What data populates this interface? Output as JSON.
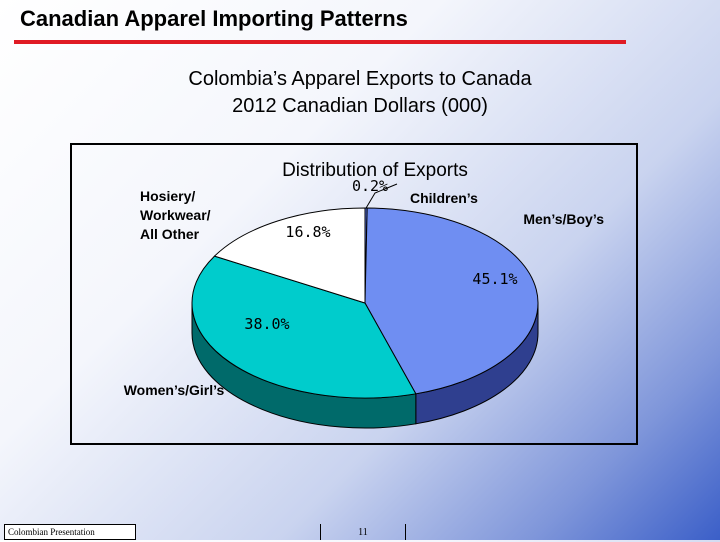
{
  "slide": {
    "title": "Canadian Apparel Importing Patterns",
    "subtitle_line1": "Colombia’s Apparel Exports to Canada",
    "subtitle_line2": "2012 Canadian Dollars (000)",
    "footer": "Colombian Presentation",
    "page_number": "11"
  },
  "colors": {
    "title_rule": "#e01b24",
    "mens_boys": "#6f8ef2",
    "mens_boys_side": "#2f3f8f",
    "womens_girls": "#00cccc",
    "womens_girls_side": "#006a6a",
    "hosiery": "#ffffff",
    "hosiery_side": "#8c8c8c",
    "childrens": "#5a74e0",
    "childrens_side": "#2a3a8a"
  },
  "chart_data": {
    "type": "pie",
    "title": "Distribution of Exports",
    "slices": [
      {
        "label": "Children’s",
        "value": 0.2,
        "value_label": "0.2%"
      },
      {
        "label": "Men’s/Boy’s",
        "value": 45.1,
        "value_label": "45.1%"
      },
      {
        "label": "Women’s/Girl’s",
        "value": 38.0,
        "value_label": "38.0%"
      },
      {
        "label": "Hosiery/\nWorkwear/\nAll Other",
        "value": 16.8,
        "value_label": "16.8%"
      }
    ],
    "style": "3d-tilted",
    "legend": "none"
  }
}
